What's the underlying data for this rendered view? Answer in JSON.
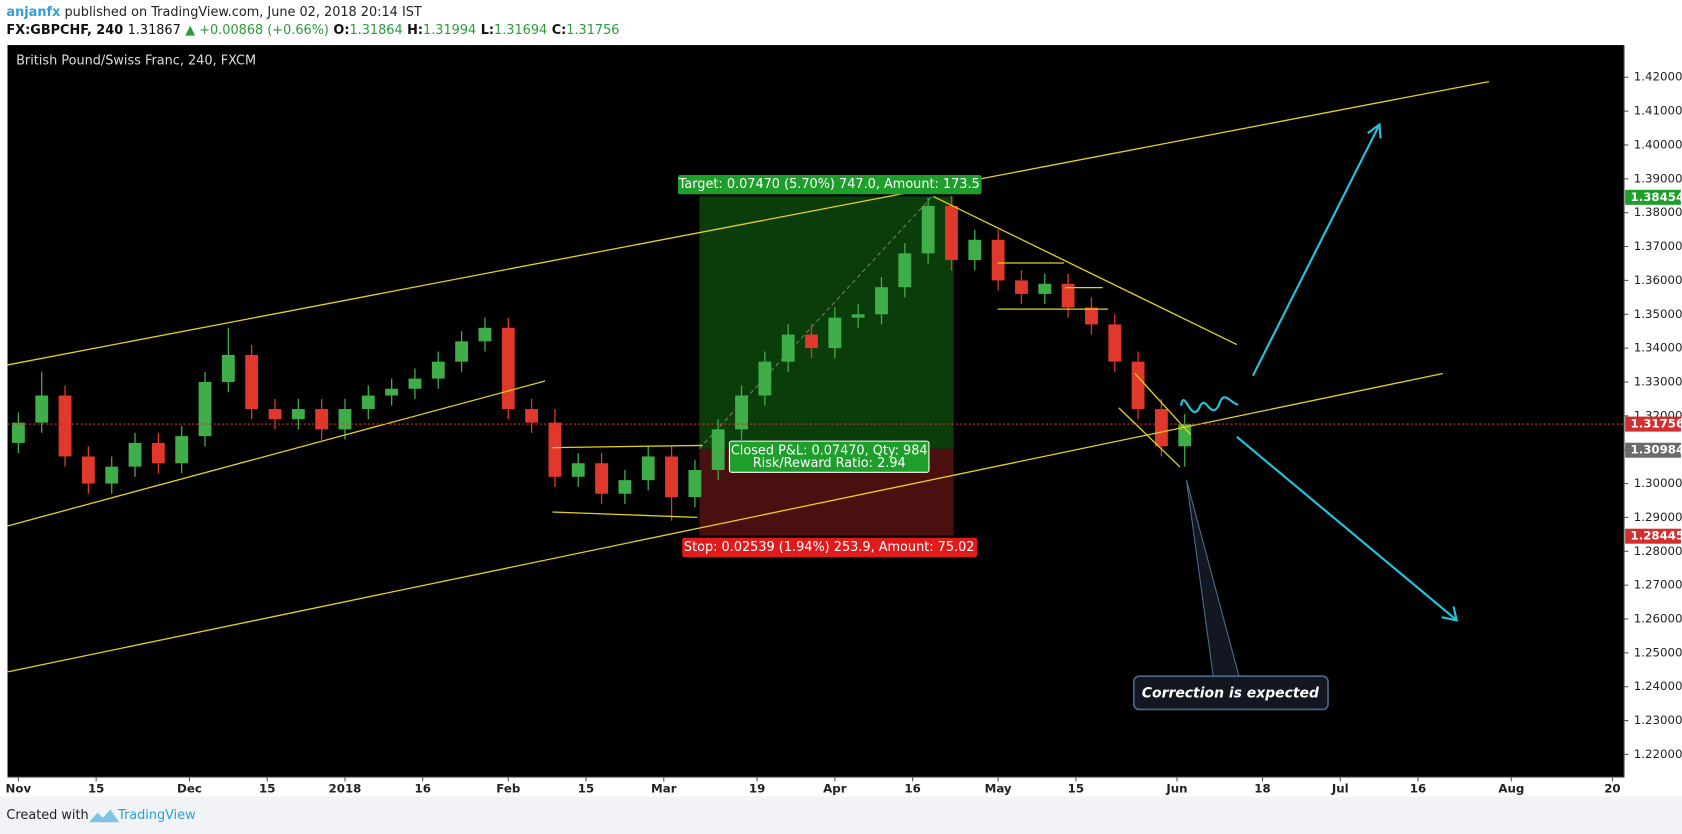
{
  "header": {
    "author": "anjanfx",
    "published": "published on TradingView.com, June 02, 2018 20:14 IST",
    "symbol": "FX:GBPCHF, 240",
    "last": "1.31867",
    "change": "▲ +0.00868 (+0.66%)",
    "ohlc": [
      {
        "label": "O:",
        "value": "1.31864"
      },
      {
        "label": "H:",
        "value": "1.31994"
      },
      {
        "label": "L:",
        "value": "1.31694"
      },
      {
        "label": "C:",
        "value": "1.31756"
      }
    ]
  },
  "chart_data": {
    "type": "candlestick",
    "title": "British Pound/Swiss Franc, 240, FXCM",
    "x": [
      0,
      3,
      6,
      9,
      12,
      15,
      18,
      21,
      24,
      27,
      30,
      33,
      36,
      39,
      42,
      45,
      48,
      51,
      54,
      57,
      60,
      63,
      66,
      69,
      72,
      75,
      78,
      81,
      84,
      87,
      90,
      93,
      96,
      99,
      102,
      105,
      108,
      111,
      114,
      117,
      120,
      123,
      126,
      129,
      132,
      135,
      138,
      141,
      144,
      147,
      150
    ],
    "open": [
      1.312,
      1.318,
      1.326,
      1.308,
      1.3,
      1.305,
      1.312,
      1.306,
      1.314,
      1.33,
      1.338,
      1.322,
      1.319,
      1.322,
      1.316,
      1.322,
      1.326,
      1.328,
      1.331,
      1.336,
      1.342,
      1.346,
      1.322,
      1.318,
      1.302,
      1.306,
      1.297,
      1.301,
      1.308,
      1.296,
      1.304,
      1.316,
      1.326,
      1.336,
      1.344,
      1.34,
      1.349,
      1.35,
      1.358,
      1.368,
      1.382,
      1.366,
      1.372,
      1.36,
      1.356,
      1.359,
      1.352,
      1.347,
      1.336,
      1.322,
      1.311
    ],
    "high": [
      1.321,
      1.333,
      1.329,
      1.311,
      1.308,
      1.315,
      1.315,
      1.317,
      1.333,
      1.346,
      1.341,
      1.325,
      1.325,
      1.325,
      1.325,
      1.329,
      1.331,
      1.334,
      1.339,
      1.345,
      1.349,
      1.349,
      1.325,
      1.322,
      1.309,
      1.309,
      1.304,
      1.311,
      1.311,
      1.307,
      1.319,
      1.329,
      1.339,
      1.347,
      1.347,
      1.352,
      1.353,
      1.361,
      1.371,
      1.3845,
      1.385,
      1.375,
      1.375,
      1.363,
      1.362,
      1.362,
      1.355,
      1.35,
      1.339,
      1.325,
      1.3205
    ],
    "low": [
      1.309,
      1.315,
      1.305,
      1.297,
      1.297,
      1.302,
      1.303,
      1.303,
      1.311,
      1.327,
      1.319,
      1.316,
      1.316,
      1.313,
      1.313,
      1.319,
      1.323,
      1.325,
      1.328,
      1.333,
      1.339,
      1.319,
      1.315,
      1.299,
      1.299,
      1.294,
      1.294,
      1.298,
      1.289,
      1.293,
      1.301,
      1.313,
      1.323,
      1.333,
      1.337,
      1.337,
      1.346,
      1.347,
      1.355,
      1.365,
      1.363,
      1.363,
      1.357,
      1.353,
      1.353,
      1.349,
      1.344,
      1.333,
      1.319,
      1.308,
      1.305
    ],
    "close": [
      1.318,
      1.326,
      1.308,
      1.3,
      1.305,
      1.312,
      1.306,
      1.314,
      1.33,
      1.338,
      1.322,
      1.319,
      1.322,
      1.316,
      1.322,
      1.326,
      1.328,
      1.331,
      1.336,
      1.342,
      1.346,
      1.322,
      1.318,
      1.302,
      1.306,
      1.297,
      1.301,
      1.308,
      1.296,
      1.304,
      1.316,
      1.326,
      1.336,
      1.344,
      1.34,
      1.349,
      1.35,
      1.358,
      1.368,
      1.382,
      1.366,
      1.372,
      1.36,
      1.356,
      1.359,
      1.352,
      1.347,
      1.336,
      1.322,
      1.311,
      1.31756
    ],
    "up_color": "#3fae49",
    "down_color": "#e0392b",
    "xlim": [
      -1.4,
      206.5
    ],
    "xticks": [
      {
        "value": 0,
        "label": "Nov"
      },
      {
        "value": 10,
        "label": "15"
      },
      {
        "value": 22,
        "label": "Dec"
      },
      {
        "value": 32,
        "label": "15"
      },
      {
        "value": 42,
        "label": "2018"
      },
      {
        "value": 52,
        "label": "16"
      },
      {
        "value": 63,
        "label": "Feb"
      },
      {
        "value": 73,
        "label": "15"
      },
      {
        "value": 83,
        "label": "Mar"
      },
      {
        "value": 95,
        "label": "19"
      },
      {
        "value": 105,
        "label": "Apr"
      },
      {
        "value": 115,
        "label": "16"
      },
      {
        "value": 126,
        "label": "May"
      },
      {
        "value": 136,
        "label": "15"
      },
      {
        "value": 149,
        "label": "Jun"
      },
      {
        "value": 160,
        "label": "18"
      },
      {
        "value": 170,
        "label": "Jul"
      },
      {
        "value": 180,
        "label": "16"
      },
      {
        "value": 192,
        "label": "Aug"
      },
      {
        "value": 205,
        "label": "20"
      }
    ],
    "ylim": [
      1.2133,
      1.4295
    ],
    "yticks": [
      {
        "value": 1.22,
        "label": "1.22000"
      },
      {
        "value": 1.23,
        "label": "1.23000"
      },
      {
        "value": 1.24,
        "label": "1.24000"
      },
      {
        "value": 1.25,
        "label": "1.25000"
      },
      {
        "value": 1.26,
        "label": "1.26000"
      },
      {
        "value": 1.27,
        "label": "1.27000"
      },
      {
        "value": 1.28,
        "label": "1.28000"
      },
      {
        "value": 1.29,
        "label": "1.29000"
      },
      {
        "value": 1.3,
        "label": "1.30000"
      },
      {
        "value": 1.31,
        "label": "1.31000"
      },
      {
        "value": 1.32,
        "label": "1.32000"
      },
      {
        "value": 1.33,
        "label": "1.33000"
      },
      {
        "value": 1.34,
        "label": "1.34000"
      },
      {
        "value": 1.35,
        "label": "1.35000"
      },
      {
        "value": 1.36,
        "label": "1.36000"
      },
      {
        "value": 1.37,
        "label": "1.37000"
      },
      {
        "value": 1.38,
        "label": "1.38000"
      },
      {
        "value": 1.39,
        "label": "1.39000"
      },
      {
        "value": 1.4,
        "label": "1.40000"
      },
      {
        "value": 1.41,
        "label": "1.41000"
      },
      {
        "value": 1.42,
        "label": "1.42000"
      }
    ],
    "grid": false,
    "price_markers": [
      {
        "value": 1.38454,
        "color": "#1e9e2a"
      },
      {
        "value": 1.31756,
        "color": "#d32f2f",
        "line": true
      },
      {
        "value": 1.30984,
        "color": "#6b6b6b"
      },
      {
        "value": 1.28445,
        "color": "#d32f2f"
      }
    ],
    "annotations": {
      "target": "Target: 0.07470 (5.70%) 747.0, Amount: 173.5",
      "closed_pl": "Closed P&L: 0.07470, Qty: 984",
      "risk_reward": "Risk/Reward Ratio: 2.94",
      "stop": "Stop: 0.02539 (1.94%) 253.9, Amount: 75.02",
      "callout": "Correction is expected"
    }
  },
  "footer": {
    "created": "Created with",
    "brand": "TradingView"
  }
}
